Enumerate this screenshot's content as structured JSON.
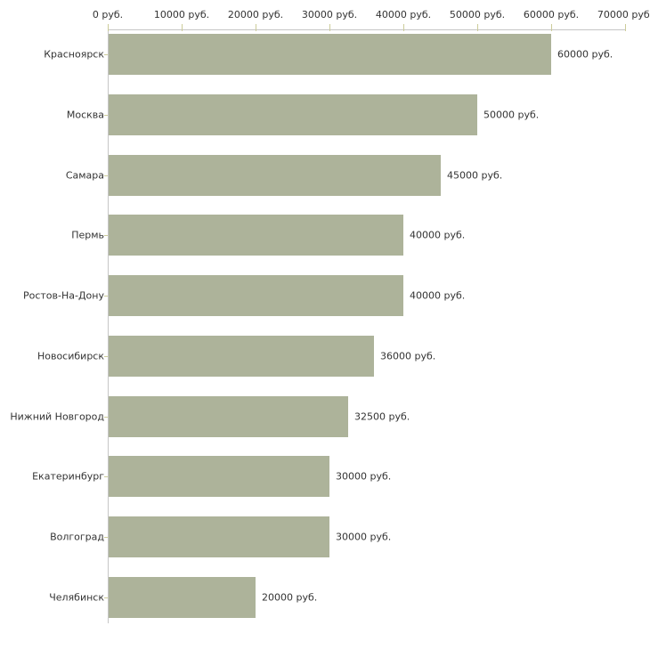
{
  "chart_data": {
    "type": "bar",
    "orientation": "horizontal",
    "title": "",
    "xlabel": "",
    "ylabel": "",
    "categories": [
      "Красноярск",
      "Москва",
      "Самара",
      "Пермь",
      "Ростов-На-Дону",
      "Новосибирск",
      "Нижний Новгород",
      "Екатеринбург",
      "Волгоград",
      "Челябинск"
    ],
    "values": [
      60000,
      50000,
      45000,
      40000,
      40000,
      36000,
      32500,
      30000,
      30000,
      20000
    ],
    "bar_value_labels": [
      "60000 руб.",
      "50000 руб.",
      "45000 руб.",
      "40000 руб.",
      "40000 руб.",
      "36000 руб.",
      "32500 руб.",
      "30000 руб.",
      "30000 руб.",
      "20000 руб."
    ],
    "x_axis": {
      "position": "top",
      "range": [
        0,
        70000
      ],
      "ticks": [
        0,
        10000,
        20000,
        30000,
        40000,
        50000,
        60000,
        70000
      ],
      "tick_labels": [
        "0 руб.",
        "10000 руб.",
        "20000 руб.",
        "30000 руб.",
        "40000 руб.",
        "50000 руб.",
        "60000 руб.",
        "70000 руб."
      ]
    },
    "legend": null,
    "grid": false,
    "colors": {
      "bar": "#adb39a",
      "axis_line": "#c6c6c6",
      "tick_mark": "#cccc99",
      "text": "#333333",
      "background": "#ffffff"
    }
  }
}
